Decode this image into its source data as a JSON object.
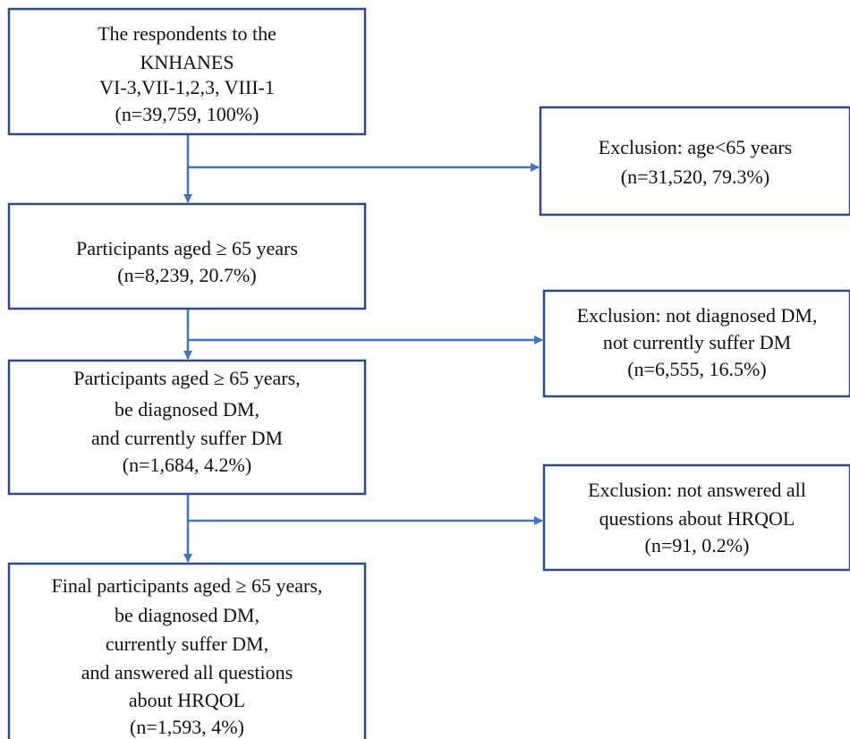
{
  "nodes": [
    {
      "lines": [
        "The respondents to the",
        "KNHANES",
        "VI-3,VII-1,2,3, VIII-1",
        "(n=39,759, 100%)"
      ]
    },
    {
      "lines": [
        "Exclusion: age<65 years",
        "(n=31,520, 79.3%)"
      ]
    },
    {
      "lines": [
        "Participants aged ≥ 65 years",
        "(n=8,239, 20.7%)"
      ]
    },
    {
      "lines": [
        "Exclusion: not diagnosed DM,",
        "not currently suffer DM",
        "(n=6,555, 16.5%)"
      ]
    },
    {
      "lines": [
        "Participants aged ≥ 65 years,",
        "be diagnosed DM,",
        "and currently suffer DM",
        "(n=1,684, 4.2%)"
      ]
    },
    {
      "lines": [
        "Exclusion: not answered all",
        "questions about HRQOL",
        "(n=91, 0.2%)"
      ]
    },
    {
      "lines": [
        "Final participants aged ≥ 65 years,",
        "be diagnosed DM,",
        "currently suffer DM,",
        "and answered all questions",
        "about HRQOL",
        "(n=1,593, 4%)"
      ]
    }
  ]
}
